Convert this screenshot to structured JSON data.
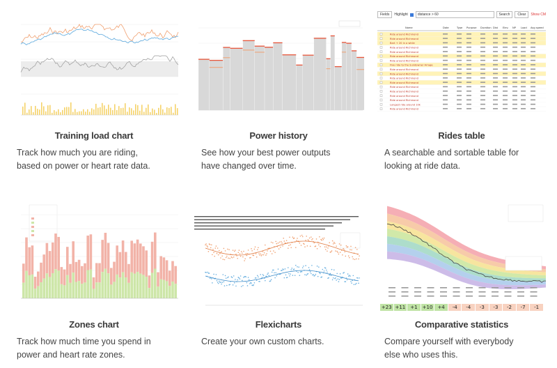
{
  "features": [
    {
      "title": "Training load chart",
      "desc_line1": "Track how much you are riding,",
      "desc_line2": "based on power or heart rate data."
    },
    {
      "title": "Power history",
      "desc_line1": "See how your best power outputs",
      "desc_line2": "have changed over time."
    },
    {
      "title": "Rides table",
      "desc_line1": "A searchable and sortable table for",
      "desc_line2": "looking at ride data."
    },
    {
      "title": "Zones chart",
      "desc_line1": "Track how much time you spend in",
      "desc_line2": "power and heart rate zones."
    },
    {
      "title": "Flexicharts",
      "desc_line1": "Create your own custom charts.",
      "desc_line2": ""
    },
    {
      "title": "Comparative statistics",
      "desc_line1": "Compare yourself with everybody",
      "desc_line2": "else who uses this."
    }
  ],
  "rides_table": {
    "field_select": "Fields",
    "highlight_label": "Highlight",
    "highlight_value": "distance > 60",
    "search_button": "Search",
    "clear_button": "Clear",
    "show_cm": "Show CM",
    "headers": [
      "Name",
      "Date",
      "Type",
      "Purpose",
      "Duration",
      "Dist",
      "Elev.",
      "NP",
      "Load",
      "Avg speed"
    ],
    "rows": [
      {
        "name": "Ride around Richmond",
        "highlight": true
      },
      {
        "name": "Ride around Richmond",
        "highlight": true
      },
      {
        "name": "Bart + 20 in a while",
        "highlight": true
      },
      {
        "name": "Ride around Richmond",
        "highlight": false
      },
      {
        "name": "Ride around Richmond",
        "highlight": false
      },
      {
        "name": "Ride around Richmond",
        "highlight": true
      },
      {
        "name": "Ride around Richmond",
        "highlight": false
      },
      {
        "name": "Five ride to the Sundowner Arrage",
        "highlight": true
      },
      {
        "name": "Ride around Richmond",
        "highlight": false
      },
      {
        "name": "Ride around Richmond",
        "highlight": true
      },
      {
        "name": "Ride around Richmond",
        "highlight": false
      },
      {
        "name": "Ride around Richmond",
        "highlight": true
      },
      {
        "name": "Ride around Richmond",
        "highlight": false
      },
      {
        "name": "Ride around Richmond",
        "highlight": false
      },
      {
        "name": "Ride around Richmond",
        "highlight": false
      },
      {
        "name": "Ride around Richmond",
        "highlight": false
      },
      {
        "name": "Longest ride around 10k",
        "highlight": false
      },
      {
        "name": "Ride around Richmond",
        "highlight": false
      }
    ]
  },
  "comparative": {
    "deltas": [
      "+23",
      "+11",
      "+1",
      "+10",
      "+4",
      "-4",
      "-4",
      "-3",
      "-3",
      "-2",
      "-7",
      "-1"
    ]
  },
  "colors": {
    "orange": "#f0a070",
    "blue": "#6ab0e0",
    "bar_yellow": "#f5d36a",
    "bar_grey": "#d8d8d8",
    "power_red": "#e8553a",
    "row_highlight": "#fff3b8",
    "zone_pink": "#f2b3a8",
    "zone_green": "#cde6a8"
  }
}
